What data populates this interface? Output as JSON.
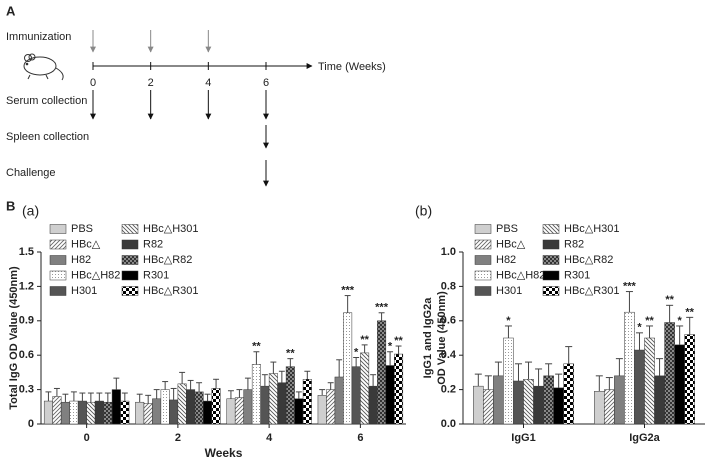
{
  "timeline": {
    "label": "A",
    "xticks": [
      0,
      2,
      4,
      6
    ],
    "axis_label": "Time (Weeks)",
    "events": [
      {
        "label": "Immunization",
        "weeks": [
          0,
          2,
          4
        ]
      },
      {
        "label": "Serum collection",
        "weeks": [
          0,
          2,
          4,
          6
        ]
      },
      {
        "label": "Spleen collection",
        "weeks": [
          6
        ]
      },
      {
        "label": "Challenge",
        "weeks": [
          6
        ]
      }
    ]
  },
  "panel_label": "B",
  "chart_data": [
    {
      "type": "bar",
      "panel": "(a)",
      "y_label": [
        "Total IgG OD Value (450nm)"
      ],
      "x_label": "Weeks",
      "categories": [
        "0",
        "2",
        "4",
        "6"
      ],
      "ylim": [
        0,
        1.5
      ],
      "yticks": [
        0,
        0.3,
        0.6,
        0.9,
        1.2,
        1.5
      ],
      "series": [
        {
          "name": "PBS",
          "color": "#cfcfcf",
          "pattern": "solid",
          "values": [
            0.2,
            0.19,
            0.22,
            0.25
          ],
          "errors": [
            0.08,
            0.07,
            0.07,
            0.05
          ],
          "stars": [
            null,
            null,
            null,
            null
          ]
        },
        {
          "name": "HBc△",
          "color": "#9a9a9a",
          "pattern": "hatch",
          "values": [
            0.24,
            0.18,
            0.23,
            0.3
          ],
          "errors": [
            0.07,
            0.07,
            0.07,
            0.06
          ],
          "stars": [
            null,
            null,
            null,
            null
          ]
        },
        {
          "name": "H82",
          "color": "#808080",
          "pattern": "solid",
          "values": [
            0.19,
            0.22,
            0.3,
            0.41
          ],
          "errors": [
            0.07,
            0.08,
            0.1,
            0.15
          ],
          "stars": [
            null,
            null,
            null,
            null
          ]
        },
        {
          "name": "HBc△H82",
          "color": "#aaaaaa",
          "pattern": "dots",
          "values": [
            0.2,
            0.3,
            0.52,
            0.97
          ],
          "errors": [
            0.08,
            0.07,
            0.11,
            0.15
          ],
          "stars": [
            null,
            null,
            "**",
            "***"
          ]
        },
        {
          "name": "H301",
          "color": "#555555",
          "pattern": "solid",
          "values": [
            0.2,
            0.21,
            0.33,
            0.5
          ],
          "errors": [
            0.07,
            0.1,
            0.1,
            0.08
          ],
          "stars": [
            null,
            null,
            null,
            "*"
          ]
        },
        {
          "name": "HBc△H301",
          "color": "#8a8a8a",
          "pattern": "backhatch",
          "values": [
            0.19,
            0.35,
            0.44,
            0.62
          ],
          "errors": [
            0.08,
            0.1,
            0.1,
            0.07
          ],
          "stars": [
            null,
            null,
            null,
            "**"
          ]
        },
        {
          "name": "R82",
          "color": "#3a3a3a",
          "pattern": "solid",
          "values": [
            0.2,
            0.3,
            0.36,
            0.33
          ],
          "errors": [
            0.07,
            0.08,
            0.1,
            0.1
          ],
          "stars": [
            null,
            null,
            null,
            null
          ]
        },
        {
          "name": "HBc△R82",
          "color": "#6a6a6a",
          "pattern": "crosshatch",
          "values": [
            0.19,
            0.28,
            0.5,
            0.9
          ],
          "errors": [
            0.08,
            0.08,
            0.07,
            0.07
          ],
          "stars": [
            null,
            null,
            "**",
            "***"
          ]
        },
        {
          "name": "R301",
          "color": "#000000",
          "pattern": "solid",
          "values": [
            0.3,
            0.2,
            0.22,
            0.51
          ],
          "errors": [
            0.1,
            0.06,
            0.06,
            0.12
          ],
          "stars": [
            null,
            null,
            null,
            "*"
          ]
        },
        {
          "name": "HBc△R301",
          "color": "#000000",
          "pattern": "checker",
          "values": [
            0.2,
            0.31,
            0.39,
            0.61
          ],
          "errors": [
            0.07,
            0.08,
            0.07,
            0.07
          ],
          "stars": [
            null,
            null,
            null,
            "**"
          ]
        }
      ]
    },
    {
      "type": "bar",
      "panel": "(b)",
      "y_label": [
        "IgG1 and IgG2a",
        "OD Value (450nm)"
      ],
      "categories": [
        "IgG1",
        "IgG2a"
      ],
      "ylim": [
        0,
        1
      ],
      "yticks": [
        {
          "value": 0,
          "label": "0.0"
        },
        0.2,
        0.4,
        0.6,
        0.8,
        {
          "value": 1,
          "label": "1.0"
        }
      ],
      "series": [
        {
          "name": "PBS",
          "color": "#cfcfcf",
          "pattern": "solid",
          "values": [
            0.22,
            0.19
          ],
          "errors": [
            0.07,
            0.09
          ],
          "stars": [
            null,
            null
          ]
        },
        {
          "name": "HBc△",
          "color": "#9a9a9a",
          "pattern": "hatch",
          "values": [
            0.2,
            0.2
          ],
          "errors": [
            0.08,
            0.07
          ],
          "stars": [
            null,
            null
          ]
        },
        {
          "name": "H82",
          "color": "#808080",
          "pattern": "solid",
          "values": [
            0.28,
            0.28
          ],
          "errors": [
            0.08,
            0.1
          ],
          "stars": [
            null,
            null
          ]
        },
        {
          "name": "HBc△H82",
          "color": "#aaaaaa",
          "pattern": "dots",
          "values": [
            0.5,
            0.65
          ],
          "errors": [
            0.07,
            0.12
          ],
          "stars": [
            "*",
            "***"
          ]
        },
        {
          "name": "H301",
          "color": "#555555",
          "pattern": "solid",
          "values": [
            0.25,
            0.43
          ],
          "errors": [
            0.1,
            0.1
          ],
          "stars": [
            null,
            "*"
          ]
        },
        {
          "name": "HBc△H301",
          "color": "#8a8a8a",
          "pattern": "backhatch",
          "values": [
            0.26,
            0.5
          ],
          "errors": [
            0.1,
            0.07
          ],
          "stars": [
            null,
            "**"
          ]
        },
        {
          "name": "R82",
          "color": "#3a3a3a",
          "pattern": "solid",
          "values": [
            0.22,
            0.28
          ],
          "errors": [
            0.1,
            0.1
          ],
          "stars": [
            null,
            null
          ]
        },
        {
          "name": "HBc△R82",
          "color": "#6a6a6a",
          "pattern": "crosshatch",
          "values": [
            0.28,
            0.59
          ],
          "errors": [
            0.07,
            0.1
          ],
          "stars": [
            null,
            "**"
          ]
        },
        {
          "name": "R301",
          "color": "#000000",
          "pattern": "solid",
          "values": [
            0.21,
            0.46
          ],
          "errors": [
            0.08,
            0.11
          ],
          "stars": [
            null,
            "*"
          ]
        },
        {
          "name": "HBc△R301",
          "color": "#000000",
          "pattern": "checker",
          "values": [
            0.35,
            0.52
          ],
          "errors": [
            0.1,
            0.1
          ],
          "stars": [
            null,
            "**"
          ]
        }
      ]
    }
  ]
}
